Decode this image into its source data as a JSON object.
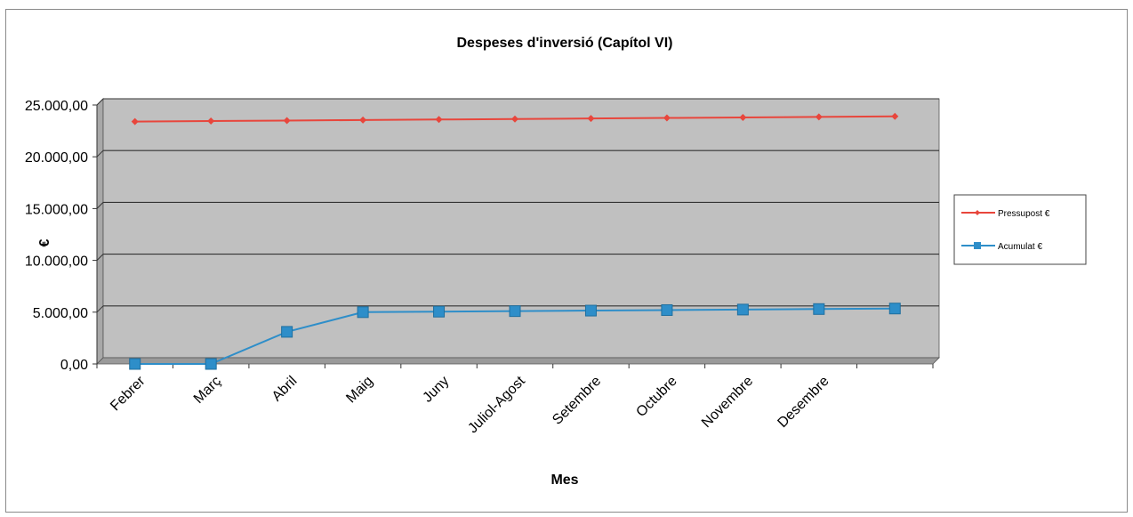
{
  "chart_data": {
    "type": "line",
    "title": "Despeses d'inversió (Capítol VI)",
    "xlabel": "Mes",
    "ylabel": "€",
    "categories": [
      "Febrer",
      "Març",
      "Abril",
      "Maig",
      "Juny",
      "Juliol-Agost",
      "Setembre",
      "Octubre",
      "Novembre",
      "Desembre",
      ""
    ],
    "ylim": [
      0,
      25000
    ],
    "y_ticks": [
      {
        "value": 0,
        "label": "0,00"
      },
      {
        "value": 5000,
        "label": "5.000,00"
      },
      {
        "value": 10000,
        "label": "10.000,00"
      },
      {
        "value": 15000,
        "label": "15.000,00"
      },
      {
        "value": 20000,
        "label": "20.000,00"
      },
      {
        "value": 25000,
        "label": "25.000,00"
      }
    ],
    "grid": true,
    "legend_position": "right",
    "plot_background": "#c0c0c0",
    "series": [
      {
        "name": "Pressupost €",
        "color": "#e8463c",
        "marker": "diamond",
        "values": [
          23400,
          23450,
          23500,
          23550,
          23600,
          23650,
          23700,
          23750,
          23800,
          23850,
          23900
        ]
      },
      {
        "name": "Acumulat €",
        "color": "#2e8ec9",
        "marker": "square",
        "values": [
          0,
          0,
          3100,
          5000,
          5050,
          5100,
          5150,
          5200,
          5250,
          5300,
          5350
        ]
      }
    ]
  }
}
